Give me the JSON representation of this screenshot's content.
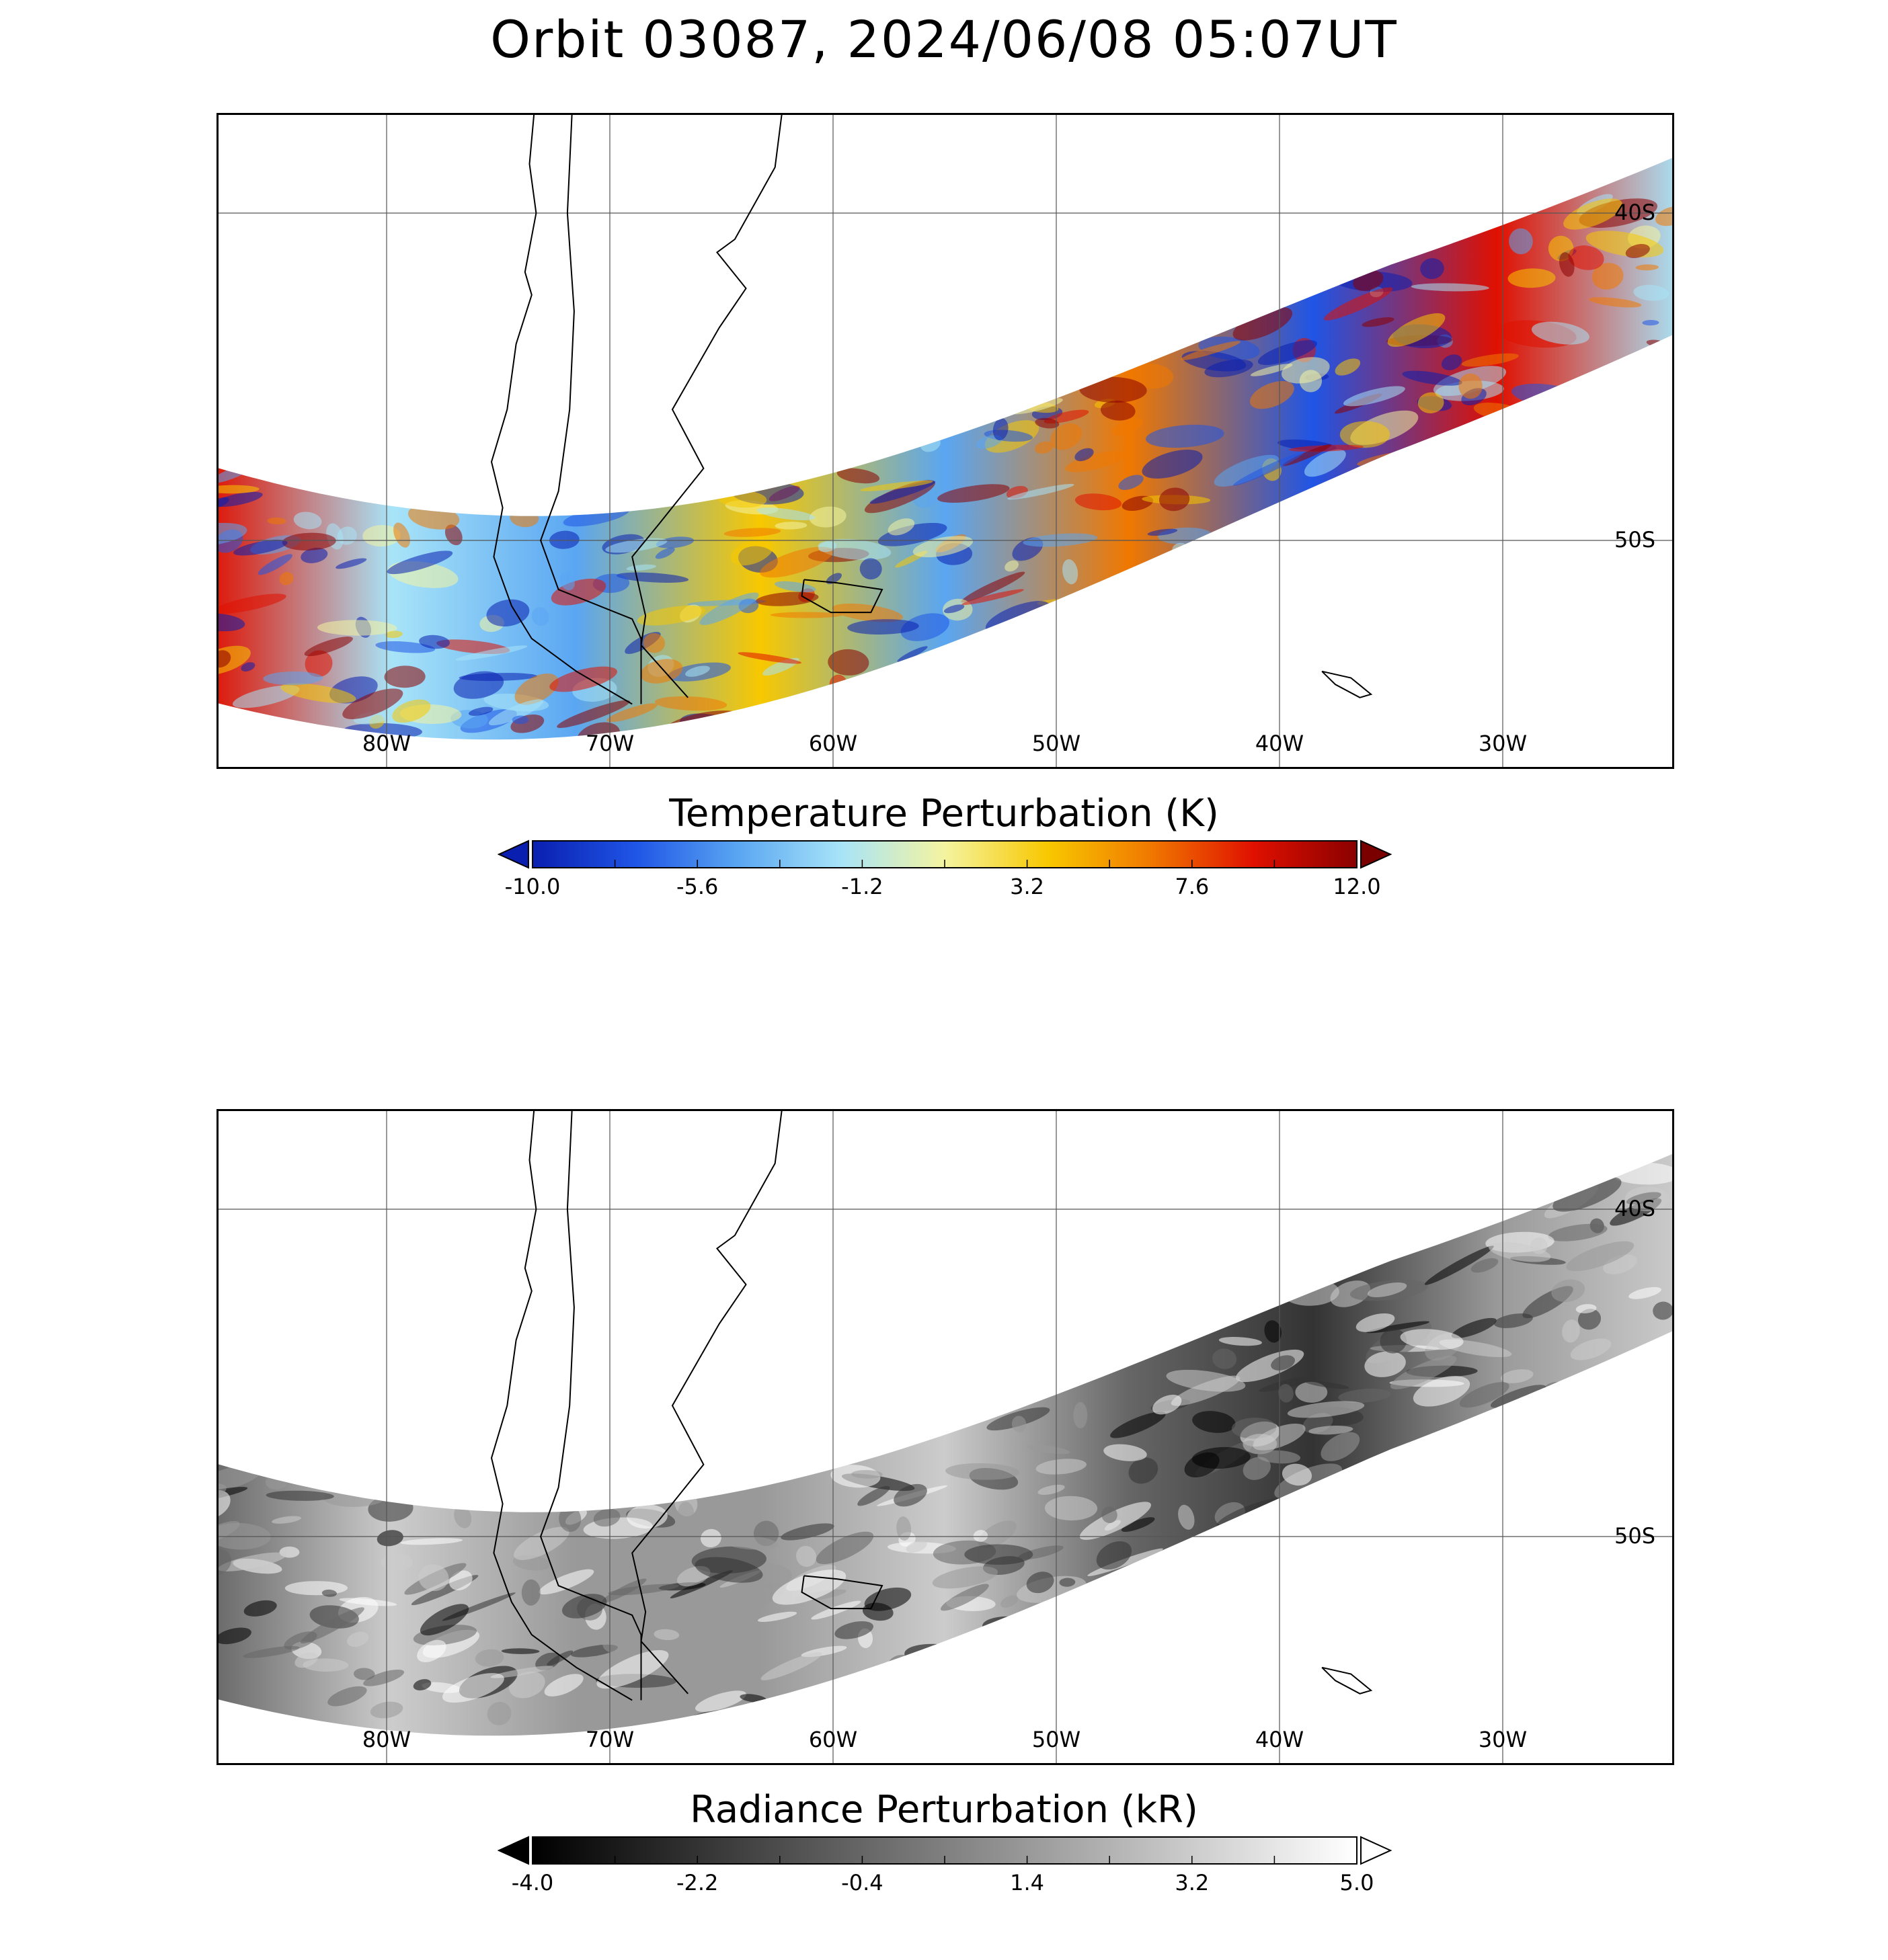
{
  "title": "Orbit 03087, 2024/06/08 05:07UT",
  "longitude_labels": [
    "80W",
    "70W",
    "60W",
    "50W",
    "40W",
    "30W"
  ],
  "latitude_labels": [
    "40S",
    "50S"
  ],
  "panels": [
    {
      "colorbar_title": "Temperature Perturbation (K)",
      "colorbar_ticks": [
        "-10.0",
        "-5.6",
        "-1.2",
        "3.2",
        "7.6",
        "12.0"
      ],
      "colormap": [
        "#0a1fb0",
        "#1f55e6",
        "#5aa6f2",
        "#a8e4f8",
        "#f4f4a0",
        "#f8c800",
        "#f07800",
        "#e01000",
        "#8a0000"
      ],
      "extend_low_color": "#0a1fb0",
      "extend_high_color": "#7a0000"
    },
    {
      "colorbar_title": "Radiance Perturbation (kR)",
      "colorbar_ticks": [
        "-4.0",
        "-2.2",
        "-0.4",
        "1.4",
        "3.2",
        "5.0"
      ],
      "colormap": [
        "#000000",
        "#333333",
        "#666666",
        "#999999",
        "#cccccc",
        "#ffffff"
      ],
      "extend_low_color": "#000000",
      "extend_high_color": "#ffffff"
    }
  ],
  "chart_data": {
    "type": "heatmap",
    "map_region": {
      "lon_range": [
        -87.5,
        -22.5
      ],
      "lat_range": [
        -60,
        -37
      ]
    },
    "gridlines": {
      "longitudes": [
        -80,
        -70,
        -60,
        -50,
        -40,
        -30
      ],
      "latitudes": [
        -40,
        -50
      ]
    },
    "swath": "curved satellite swath from about 55S near 87W to about 40S near 23W",
    "subplots": [
      {
        "variable": "Temperature Perturbation",
        "units": "K",
        "vmin": -10.0,
        "vmax": 12.0,
        "extend": "both"
      },
      {
        "variable": "Radiance Perturbation",
        "units": "kR",
        "vmin": -4.0,
        "vmax": 5.0,
        "extend": "both"
      }
    ]
  }
}
